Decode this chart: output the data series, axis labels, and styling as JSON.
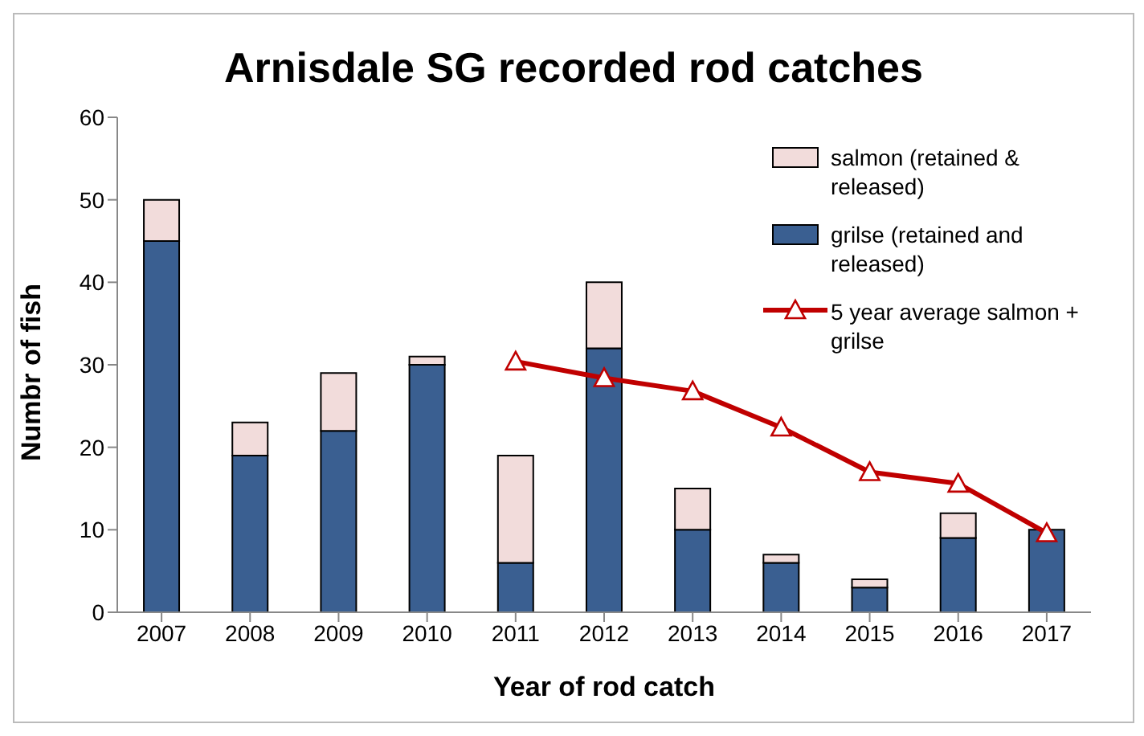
{
  "chart_data": {
    "type": "bar",
    "title": "Arnisdale SG recorded rod catches",
    "xlabel": "Year of rod catch",
    "ylabel": "Numbr of fish",
    "categories": [
      "2007",
      "2008",
      "2009",
      "2010",
      "2011",
      "2012",
      "2013",
      "2014",
      "2015",
      "2016",
      "2017"
    ],
    "stacked": true,
    "series": [
      {
        "name": "grilse (retained and released)",
        "color": "#3a5f91",
        "values": [
          45,
          19,
          22,
          30,
          6,
          32,
          10,
          6,
          3,
          9,
          10
        ]
      },
      {
        "name": "salmon (retained & released)",
        "color": "#f2dcdb",
        "values": [
          5,
          4,
          7,
          1,
          13,
          8,
          5,
          1,
          1,
          3,
          0
        ]
      },
      {
        "name": "5 year average salmon + grilse",
        "type": "line",
        "color": "#c00000",
        "marker": "triangle",
        "values": [
          null,
          null,
          null,
          null,
          30.4,
          28.4,
          26.8,
          22.4,
          17,
          15.6,
          9.6
        ]
      }
    ],
    "ylim": [
      0,
      60
    ],
    "yticks": [
      0,
      10,
      20,
      30,
      40,
      50,
      60
    ],
    "grid": false,
    "legend": "top right"
  }
}
